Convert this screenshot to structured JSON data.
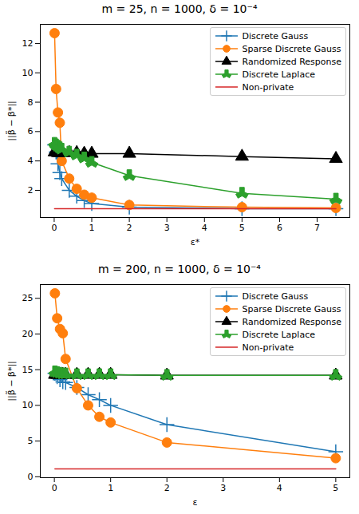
{
  "chart_data": [
    {
      "type": "line",
      "title": "m = 25, n = 1000, δ = 10⁻⁴",
      "x_label": "ε*",
      "y_label": "||β̃ − β*||",
      "x": [
        0.01,
        0.05,
        0.1,
        0.15,
        0.2,
        0.4,
        0.6,
        0.8,
        1,
        2,
        5,
        7.5
      ],
      "series": [
        {
          "name": "Discrete Gauss",
          "color": "#1f77b4",
          "marker": "plus",
          "line_style": "solid",
          "values": [
            5.1,
            4.6,
            3.8,
            3.2,
            2.8,
            2.0,
            1.6,
            1.3,
            1.1,
            0.85,
            0.75,
            0.75
          ]
        },
        {
          "name": "Sparse Discrete Gauss",
          "color": "#ff7f0e",
          "marker": "circle",
          "line_style": "solid",
          "values": [
            12.7,
            8.9,
            7.3,
            6.6,
            4.0,
            2.8,
            2.1,
            1.7,
            1.5,
            1.0,
            0.85,
            0.8
          ]
        },
        {
          "name": "Randomized Response",
          "color": "#000000",
          "marker": "triangle",
          "line_style": "solid",
          "values": [
            4.6,
            4.6,
            4.55,
            4.55,
            4.55,
            4.55,
            4.55,
            4.5,
            4.5,
            4.5,
            4.3,
            4.15
          ]
        },
        {
          "name": "Discrete Laplace",
          "color": "#2ca02c",
          "marker": "wye",
          "line_style": "solid",
          "values": [
            5.2,
            5.1,
            5.0,
            4.9,
            4.8,
            4.6,
            4.4,
            4.2,
            3.9,
            3.0,
            1.8,
            1.4
          ]
        },
        {
          "name": "Non-private",
          "color": "#d62728",
          "marker": "none",
          "line_style": "solid",
          "values": [
            0.75,
            0.75,
            0.75,
            0.75,
            0.75,
            0.75,
            0.75,
            0.75,
            0.75,
            0.75,
            0.75,
            0.75
          ]
        }
      ],
      "xlim": [
        -0.37,
        7.87
      ],
      "ylim": [
        0.15,
        13.3
      ],
      "xticks": [
        0,
        1,
        2,
        3,
        4,
        5,
        6,
        7
      ],
      "yticks": [
        2,
        4,
        6,
        8,
        10,
        12
      ],
      "legend": "upper right",
      "grid": false
    },
    {
      "type": "line",
      "title": "m = 200, n = 1000, δ = 10⁻⁴",
      "x_label": "ε",
      "y_label": "||β̃ − β*||",
      "x": [
        0.01,
        0.05,
        0.1,
        0.15,
        0.2,
        0.4,
        0.6,
        0.8,
        1,
        2,
        5
      ],
      "series": [
        {
          "name": "Discrete Gauss",
          "color": "#1f77b4",
          "marker": "plus",
          "line_style": "solid",
          "values": [
            14.5,
            14.0,
            13.6,
            13.3,
            13.2,
            12.5,
            11.5,
            10.8,
            10.0,
            7.3,
            3.5
          ]
        },
        {
          "name": "Sparse Discrete Gauss",
          "color": "#ff7f0e",
          "marker": "circle",
          "line_style": "solid",
          "values": [
            25.7,
            22.2,
            20.7,
            20.1,
            16.5,
            12.4,
            10.0,
            8.4,
            7.6,
            4.8,
            2.6
          ]
        },
        {
          "name": "Randomized Response",
          "color": "#000000",
          "marker": "triangle",
          "line_style": "solid",
          "values": [
            14.3,
            14.3,
            14.3,
            14.3,
            14.3,
            14.3,
            14.3,
            14.3,
            14.3,
            14.2,
            14.2
          ]
        },
        {
          "name": "Discrete Laplace",
          "color": "#2ca02c",
          "marker": "wye",
          "line_style": "solid",
          "values": [
            14.7,
            14.6,
            14.5,
            14.4,
            14.4,
            14.3,
            14.3,
            14.3,
            14.3,
            14.2,
            14.2
          ]
        },
        {
          "name": "Non-private",
          "color": "#d62728",
          "marker": "none",
          "line_style": "solid",
          "values": [
            1.1,
            1.1,
            1.1,
            1.1,
            1.1,
            1.1,
            1.1,
            1.1,
            1.1,
            1.1,
            1.1
          ]
        }
      ],
      "xlim": [
        -0.25,
        5.25
      ],
      "ylim": [
        -0.13,
        26.93
      ],
      "xticks": [
        0,
        1,
        2,
        3,
        4,
        5
      ],
      "yticks": [
        0,
        5,
        10,
        15,
        20,
        25
      ],
      "legend": "upper right",
      "grid": false
    }
  ]
}
